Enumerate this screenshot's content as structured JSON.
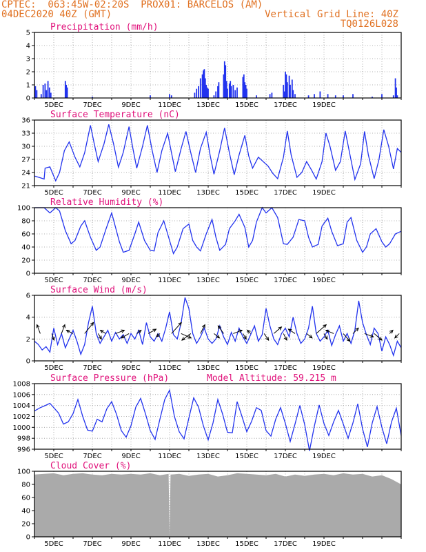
{
  "header": {
    "line1_left": "CPTEC:  063:45W-02:20S  PROX01: BARCELOS (AM)",
    "line2_left": "04DEC2020 40Z (GMT)",
    "line2_right": "Vertical Grid Line: 40Z",
    "line3_right": "TQ0126L028"
  },
  "chart_data": [
    {
      "type": "bar",
      "title": "Precipitation (mm/h)",
      "color": "#2233ee",
      "ylim": [
        0,
        5
      ],
      "yticks": [
        0,
        1,
        2,
        3,
        4,
        5
      ],
      "xticks": [
        "5DEC",
        "7DEC",
        "9DEC",
        "11DEC",
        "13DEC",
        "15DEC",
        "17DEC",
        "19DEC"
      ],
      "x_unit": "days since 04DEC2020 00Z",
      "bars": [
        [
          0.05,
          0.9
        ],
        [
          0.12,
          0.6
        ],
        [
          0.35,
          0.3
        ],
        [
          0.45,
          1.0
        ],
        [
          0.55,
          1.1
        ],
        [
          0.62,
          0.6
        ],
        [
          0.7,
          1.3
        ],
        [
          0.78,
          0.8
        ],
        [
          0.85,
          0.4
        ],
        [
          1.6,
          1.3
        ],
        [
          1.65,
          1.0
        ],
        [
          1.7,
          0.8
        ],
        [
          3.0,
          0.1
        ],
        [
          6.0,
          0.2
        ],
        [
          7.0,
          0.3
        ],
        [
          7.1,
          0.2
        ],
        [
          8.3,
          0.4
        ],
        [
          8.4,
          0.7
        ],
        [
          8.5,
          0.9
        ],
        [
          8.6,
          1.5
        ],
        [
          8.7,
          1.8
        ],
        [
          8.75,
          2.1
        ],
        [
          8.8,
          2.2
        ],
        [
          8.85,
          1.5
        ],
        [
          8.9,
          1.0
        ],
        [
          8.95,
          0.8
        ],
        [
          9.0,
          0.7
        ],
        [
          9.3,
          0.2
        ],
        [
          9.4,
          0.5
        ],
        [
          9.5,
          0.9
        ],
        [
          9.55,
          1.2
        ],
        [
          9.8,
          1.8
        ],
        [
          9.85,
          2.8
        ],
        [
          9.9,
          2.5
        ],
        [
          9.95,
          1.3
        ],
        [
          10.0,
          0.7
        ],
        [
          10.1,
          1.1
        ],
        [
          10.15,
          1.3
        ],
        [
          10.2,
          0.9
        ],
        [
          10.3,
          1.0
        ],
        [
          10.4,
          0.6
        ],
        [
          10.5,
          0.8
        ],
        [
          10.8,
          1.6
        ],
        [
          10.85,
          1.8
        ],
        [
          10.9,
          1.2
        ],
        [
          10.95,
          1.0
        ],
        [
          11.0,
          0.7
        ],
        [
          11.5,
          0.2
        ],
        [
          12.2,
          0.3
        ],
        [
          12.3,
          0.4
        ],
        [
          12.9,
          1.0
        ],
        [
          12.95,
          0.5
        ],
        [
          13.0,
          2.0
        ],
        [
          13.05,
          1.8
        ],
        [
          13.1,
          1.2
        ],
        [
          13.2,
          1.7
        ],
        [
          13.25,
          1.0
        ],
        [
          13.35,
          1.4
        ],
        [
          13.4,
          0.6
        ],
        [
          13.5,
          0.3
        ],
        [
          14.2,
          0.2
        ],
        [
          14.5,
          0.3
        ],
        [
          14.8,
          0.5
        ],
        [
          15.2,
          0.3
        ],
        [
          15.6,
          0.2
        ],
        [
          16.0,
          0.2
        ],
        [
          16.5,
          0.3
        ],
        [
          17.5,
          0.1
        ],
        [
          18.0,
          0.3
        ],
        [
          18.6,
          0.2
        ],
        [
          18.7,
          1.5
        ],
        [
          18.75,
          0.8
        ],
        [
          18.8,
          0.2
        ]
      ]
    },
    {
      "type": "line",
      "title": "Surface Temperature (nC)",
      "color": "#2233ee",
      "ylim": [
        21,
        36
      ],
      "yticks": [
        21,
        24,
        27,
        30,
        33,
        36
      ],
      "xticks": [
        "5DEC",
        "7DEC",
        "9DEC",
        "11DEC",
        "13DEC",
        "15DEC",
        "17DEC",
        "19DEC"
      ],
      "x": [
        0,
        0.3,
        0.5,
        0.55,
        0.8,
        1.1,
        1.3,
        1.55,
        1.8,
        2.1,
        2.35,
        2.6,
        2.9,
        3.1,
        3.3,
        3.6,
        3.85,
        4.1,
        4.35,
        4.6,
        4.9,
        5.1,
        5.3,
        5.6,
        5.85,
        6.1,
        6.35,
        6.6,
        6.9,
        7.1,
        7.3,
        7.6,
        7.85,
        8.1,
        8.35,
        8.6,
        8.9,
        9.1,
        9.3,
        9.6,
        9.85,
        10.1,
        10.35,
        10.6,
        10.9,
        11.1,
        11.3,
        11.6,
        11.85,
        12.1,
        12.35,
        12.6,
        12.9,
        13.1,
        13.3,
        13.6,
        13.85,
        14.1,
        14.35,
        14.6,
        14.9,
        15.1,
        15.3,
        15.6,
        15.85,
        16.1,
        16.35,
        16.6,
        16.9,
        17.1,
        17.3,
        17.6,
        17.85,
        18.1,
        18.35,
        18.6,
        18.8,
        19.0
      ],
      "y": [
        23.2,
        22.8,
        22.5,
        25.0,
        25.3,
        22.1,
        24.0,
        29.0,
        31.0,
        27.5,
        25.3,
        28.5,
        34.8,
        30.5,
        26.5,
        30.5,
        35.0,
        30.5,
        25.2,
        28.6,
        34.5,
        29.5,
        25.0,
        30.0,
        34.8,
        29.0,
        24.0,
        29.0,
        33.0,
        28.5,
        24.2,
        29.5,
        33.4,
        28.5,
        24.0,
        29.5,
        33.2,
        28.0,
        23.6,
        29.0,
        34.2,
        28.5,
        23.5,
        28.0,
        32.5,
        27.8,
        25.0,
        27.5,
        26.5,
        25.5,
        23.8,
        22.6,
        27.5,
        33.5,
        28.0,
        22.9,
        24.0,
        26.5,
        24.6,
        22.5,
        26.5,
        33.0,
        30.2,
        24.5,
        26.5,
        33.5,
        28.0,
        22.4,
        26.0,
        33.4,
        28.0,
        22.6,
        27.0,
        33.8,
        30.0,
        24.8,
        29.5,
        28.6
      ]
    },
    {
      "type": "line",
      "title": "Relative Humidity (%)",
      "color": "#2233ee",
      "ylim": [
        0,
        100
      ],
      "yticks": [
        0,
        20,
        40,
        60,
        80,
        100
      ],
      "xticks": [
        "5DEC",
        "7DEC",
        "9DEC",
        "11DEC",
        "13DEC",
        "15DEC",
        "17DEC",
        "19DEC"
      ],
      "x": [
        0,
        0.5,
        0.8,
        1.1,
        1.3,
        1.6,
        1.9,
        2.1,
        2.4,
        2.6,
        2.9,
        3.2,
        3.4,
        3.7,
        4.0,
        4.2,
        4.4,
        4.6,
        4.9,
        5.2,
        5.4,
        5.7,
        6.0,
        6.2,
        6.4,
        6.7,
        7.0,
        7.2,
        7.4,
        7.7,
        8.0,
        8.2,
        8.4,
        8.6,
        8.9,
        9.2,
        9.4,
        9.6,
        9.9,
        10.1,
        10.4,
        10.6,
        10.9,
        11.1,
        11.3,
        11.5,
        11.8,
        12.0,
        12.3,
        12.6,
        12.9,
        13.1,
        13.4,
        13.7,
        14.0,
        14.2,
        14.4,
        14.7,
        14.9,
        15.2,
        15.4,
        15.7,
        16.0,
        16.2,
        16.4,
        16.7,
        17.0,
        17.2,
        17.4,
        17.7,
        18.0,
        18.2,
        18.4,
        18.7,
        19.0
      ],
      "y": [
        100,
        100,
        92,
        100,
        95,
        65,
        45,
        50,
        72,
        80,
        55,
        35,
        40,
        67,
        92,
        70,
        48,
        32,
        35,
        60,
        78,
        50,
        35,
        34,
        62,
        80,
        50,
        30,
        40,
        68,
        75,
        50,
        40,
        34,
        60,
        82,
        55,
        35,
        44,
        68,
        80,
        90,
        70,
        40,
        50,
        78,
        100,
        92,
        100,
        85,
        45,
        44,
        55,
        82,
        80,
        55,
        40,
        44,
        72,
        84,
        64,
        42,
        45,
        78,
        85,
        50,
        32,
        40,
        60,
        68,
        48,
        40,
        45,
        60,
        64
      ]
    },
    {
      "type": "line",
      "title": "Surface Wind (m/s)",
      "color": "#2233ee",
      "ylim": [
        0,
        6
      ],
      "yticks": [
        0,
        2,
        4,
        6
      ],
      "xticks": [
        "5DEC",
        "7DEC",
        "9DEC",
        "11DEC",
        "13DEC",
        "15DEC",
        "17DEC",
        "19DEC"
      ],
      "x": [
        0,
        0.2,
        0.4,
        0.6,
        0.8,
        1.0,
        1.2,
        1.4,
        1.6,
        1.8,
        2.0,
        2.2,
        2.4,
        2.6,
        2.8,
        3.0,
        3.2,
        3.4,
        3.6,
        3.8,
        4.0,
        4.2,
        4.4,
        4.6,
        4.8,
        5.0,
        5.2,
        5.4,
        5.6,
        5.8,
        6.0,
        6.2,
        6.4,
        6.6,
        6.8,
        7.0,
        7.2,
        7.4,
        7.6,
        7.8,
        8.0,
        8.2,
        8.4,
        8.6,
        8.8,
        9.0,
        9.2,
        9.4,
        9.6,
        9.8,
        10.0,
        10.2,
        10.4,
        10.6,
        10.8,
        11.0,
        11.2,
        11.4,
        11.6,
        11.8,
        12.0,
        12.2,
        12.4,
        12.6,
        12.8,
        13.0,
        13.2,
        13.4,
        13.6,
        13.8,
        14.0,
        14.2,
        14.4,
        14.6,
        14.8,
        15.0,
        15.2,
        15.4,
        15.6,
        15.8,
        16.0,
        16.2,
        16.4,
        16.6,
        16.8,
        17.0,
        17.2,
        17.4,
        17.6,
        17.8,
        18.0,
        18.2,
        18.4,
        18.6,
        18.8,
        19.0
      ],
      "y": [
        1.8,
        1.5,
        1.0,
        1.3,
        0.8,
        3.0,
        1.5,
        2.5,
        1.2,
        2.0,
        2.8,
        1.8,
        0.6,
        1.5,
        3.5,
        5.0,
        2.5,
        1.6,
        2.2,
        2.8,
        1.8,
        2.6,
        2.0,
        2.4,
        1.6,
        2.5,
        2.0,
        2.8,
        1.5,
        3.5,
        2.2,
        1.8,
        2.5,
        1.8,
        3.0,
        4.5,
        2.4,
        2.0,
        3.5,
        5.8,
        4.8,
        2.5,
        1.6,
        2.2,
        3.0,
        2.0,
        1.6,
        2.0,
        3.2,
        2.2,
        1.5,
        2.6,
        1.8,
        3.0,
        2.2,
        1.6,
        2.4,
        3.2,
        1.8,
        2.4,
        4.8,
        3.2,
        2.0,
        1.5,
        2.5,
        3.0,
        2.2,
        4.0,
        2.5,
        1.6,
        2.0,
        3.0,
        5.0,
        2.5,
        1.8,
        2.2,
        2.8,
        1.4,
        2.4,
        3.2,
        1.8,
        2.5,
        1.6,
        2.8,
        5.5,
        3.5,
        2.4,
        1.5,
        3.0,
        2.5,
        0.9,
        2.2,
        1.5,
        0.5,
        1.8,
        1.2
      ],
      "arrows": [
        [
          0.3,
          -0.3,
          0.8
        ],
        [
          0.9,
          0.2,
          -0.6
        ],
        [
          1.4,
          0.3,
          0.8
        ],
        [
          2.0,
          -0.6,
          0.3
        ],
        [
          2.6,
          0.8,
          1.0
        ],
        [
          3.3,
          0.3,
          -0.5
        ],
        [
          3.7,
          -0.5,
          0.3
        ],
        [
          4.2,
          0.8,
          0.3
        ],
        [
          4.9,
          -0.7,
          -0.4
        ],
        [
          5.3,
          0.4,
          0.3
        ],
        [
          5.9,
          0.7,
          0.4
        ],
        [
          6.5,
          -0.3,
          -0.3
        ],
        [
          7.1,
          0.9,
          1.0
        ],
        [
          7.6,
          0.9,
          -0.4
        ],
        [
          8.1,
          -0.8,
          -0.6
        ],
        [
          8.6,
          0.4,
          0.8
        ],
        [
          9.3,
          0.5,
          -0.4
        ],
        [
          9.8,
          -0.5,
          0.7
        ],
        [
          10.3,
          0.8,
          0.3
        ],
        [
          10.8,
          0.3,
          -0.5
        ],
        [
          11.2,
          -0.3,
          0.3
        ],
        [
          11.9,
          0.4,
          -0.6
        ],
        [
          12.4,
          0.7,
          0.6
        ],
        [
          12.9,
          0.3,
          -0.6
        ],
        [
          13.5,
          -0.6,
          0.4
        ],
        [
          14.1,
          0.5,
          -0.4
        ],
        [
          14.6,
          0.9,
          0.8
        ],
        [
          15.0,
          0.3,
          -0.5
        ],
        [
          15.5,
          -0.7,
          0.3
        ],
        [
          16.0,
          0.6,
          -0.7
        ],
        [
          16.5,
          0.5,
          0.5
        ],
        [
          17.1,
          0.8,
          -0.3
        ],
        [
          17.6,
          0.7,
          -0.6
        ],
        [
          18.4,
          0.3,
          0.3
        ],
        [
          18.9,
          -0.4,
          -0.4
        ]
      ]
    },
    {
      "type": "line",
      "title": "Surface Pressure (hPa)",
      "annotation": "Model Altitude: 59.215 m",
      "color": "#2233ee",
      "ylim": [
        996,
        1008
      ],
      "yticks": [
        996,
        998,
        1000,
        1002,
        1004,
        1006,
        1008
      ],
      "xticks": [
        "5DEC",
        "7DEC",
        "9DEC",
        "11DEC",
        "13DEC",
        "15DEC",
        "17DEC",
        "19DEC"
      ],
      "x": [
        0,
        0.3,
        0.5,
        0.8,
        1.0,
        1.25,
        1.5,
        1.75,
        2.0,
        2.25,
        2.5,
        2.75,
        3.0,
        3.25,
        3.5,
        3.75,
        4.0,
        4.25,
        4.5,
        4.75,
        5.0,
        5.25,
        5.5,
        5.75,
        6.0,
        6.25,
        6.5,
        6.75,
        7.0,
        7.25,
        7.5,
        7.75,
        8.0,
        8.25,
        8.5,
        8.75,
        9.0,
        9.25,
        9.5,
        9.75,
        10.0,
        10.25,
        10.5,
        10.75,
        11.0,
        11.25,
        11.5,
        11.75,
        12.0,
        12.25,
        12.5,
        12.75,
        13.0,
        13.25,
        13.5,
        13.75,
        14.0,
        14.25,
        14.5,
        14.75,
        15.0,
        15.25,
        15.5,
        15.75,
        16.0,
        16.25,
        16.5,
        16.75,
        17.0,
        17.25,
        17.5,
        17.75,
        18.0,
        18.25,
        18.5,
        18.75,
        19.0
      ],
      "y": [
        1003.0,
        1003.6,
        1003.9,
        1004.4,
        1003.6,
        1002.6,
        1000.6,
        1001.0,
        1002.5,
        1005.1,
        1002.0,
        999.5,
        999.3,
        1001.5,
        1001.0,
        1003.4,
        1004.7,
        1002.4,
        999.4,
        998.2,
        1000.3,
        1003.7,
        1005.3,
        1002.5,
        999.4,
        997.8,
        1001.5,
        1005.1,
        1006.8,
        1002.0,
        999.2,
        997.9,
        1001.7,
        1005.4,
        1003.7,
        1000.3,
        997.7,
        1000.8,
        1005.1,
        1002.4,
        999.1,
        999.0,
        1004.7,
        1002.0,
        999.2,
        1001.1,
        1003.6,
        1003.1,
        999.4,
        998.4,
        1001.5,
        1003.6,
        1000.7,
        997.4,
        1000.6,
        1004.0,
        1000.5,
        995.7,
        1000.2,
        1004.1,
        1000.7,
        998.5,
        1001.0,
        1003.1,
        1000.6,
        998.0,
        1000.8,
        1004.3,
        999.7,
        996.4,
        1000.8,
        1003.8,
        1000.0,
        997.0,
        1001.0,
        1003.5,
        998.5
      ]
    },
    {
      "type": "area",
      "title": "Cloud Cover (%)",
      "color": "#aaaaaa",
      "ylim": [
        0,
        100
      ],
      "yticks": [
        0,
        20,
        40,
        60,
        80,
        100
      ],
      "xticks": [
        "5DEC",
        "7DEC",
        "9DEC",
        "11DEC",
        "13DEC",
        "15DEC",
        "17DEC",
        "19DEC"
      ],
      "x": [
        0,
        0.5,
        1.0,
        1.5,
        2.0,
        2.5,
        3.0,
        3.5,
        4.0,
        4.5,
        5.0,
        5.5,
        6.0,
        6.5,
        6.95,
        7.0,
        7.05,
        7.5,
        8.0,
        8.5,
        9.0,
        9.5,
        10.0,
        10.5,
        11.0,
        11.5,
        12.0,
        12.5,
        13.0,
        13.5,
        14.0,
        14.5,
        15.0,
        15.5,
        16.0,
        16.5,
        17.0,
        17.5,
        18.0,
        18.5,
        19.0
      ],
      "y": [
        95,
        96,
        97,
        94,
        96,
        97,
        95,
        94,
        96,
        95,
        96,
        95,
        97,
        94,
        96,
        0,
        95,
        96,
        93,
        95,
        96,
        92,
        94,
        97,
        96,
        95,
        94,
        96,
        92,
        95,
        93,
        95,
        96,
        94,
        97,
        95,
        96,
        92,
        94,
        88,
        80
      ]
    }
  ]
}
